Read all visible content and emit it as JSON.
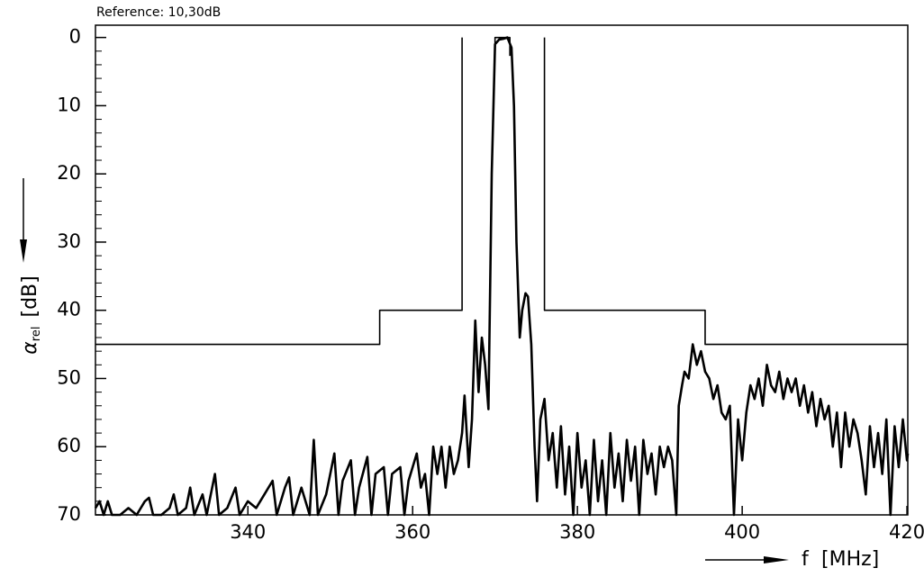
{
  "chart_data": {
    "type": "line",
    "reference": "Reference:   10,30dB",
    "y_label_symbol": "α",
    "y_label_sub": "rel",
    "y_label_unit": "[dB]",
    "x_label_symbol": "f",
    "x_label_unit": "[MHz]",
    "xlim": [
      321.5,
      420.1
    ],
    "ylim": [
      70,
      -1.8
    ],
    "xticks": [
      340,
      360,
      380,
      400,
      420
    ],
    "yticks": [
      0,
      10,
      20,
      30,
      40,
      50,
      60,
      70
    ],
    "yminorticks": [
      2,
      4,
      6,
      8,
      12,
      14,
      16,
      18,
      22,
      24,
      26,
      28,
      32,
      34,
      36,
      38,
      42,
      44,
      46,
      48,
      52,
      54,
      56,
      58,
      62,
      64,
      66,
      68
    ],
    "series": [
      {
        "color": "#000000",
        "x": [
          321.5,
          356,
          356,
          366,
          366
        ],
        "values": [
          45,
          45,
          40,
          40,
          0
        ]
      },
      {
        "color": "#000000",
        "x": [
          376,
          376,
          395.5,
          395.5,
          420.1
        ],
        "values": [
          0,
          40,
          40,
          45,
          45
        ]
      },
      {
        "color": "#000000",
        "x": [
          370,
          370,
          371.8,
          371.8
        ],
        "values": [
          2.7,
          0,
          0,
          2.7
        ]
      },
      {
        "color": "#000000",
        "x": [
          321.5,
          322,
          322.5,
          323,
          323.5,
          324.5,
          325.5,
          326.5,
          327.5,
          328,
          328.5,
          329.5,
          330.5,
          331,
          331.5,
          332.5,
          333,
          333.5,
          334.5,
          335,
          336,
          336.5,
          337.5,
          338.5,
          339,
          340,
          341,
          342,
          343,
          343.5,
          344.5,
          345,
          345.5,
          346.5,
          347.5,
          348,
          348.5,
          349.5,
          350.5,
          351,
          351.5,
          352.5,
          353,
          353.5,
          354.5,
          355,
          355.5,
          356.5,
          357,
          357.5,
          358.5,
          359,
          359.5,
          360.5,
          361,
          361.5,
          362,
          362.5,
          363,
          363.5,
          364,
          364.5,
          365,
          365.5,
          366,
          366.3,
          366.8,
          367.2,
          367.6,
          368,
          368.4,
          368.8,
          369.2,
          369.6,
          370,
          370.5,
          371,
          371.5,
          372,
          372.3,
          372.6,
          373,
          373.3,
          373.7,
          374,
          374.4,
          374.8,
          375.1,
          375.5,
          376,
          376.5,
          377,
          377.5,
          378,
          378.5,
          379,
          379.5,
          380,
          380.5,
          381,
          381.5,
          382,
          382.5,
          383,
          383.5,
          384,
          384.5,
          385,
          385.5,
          386,
          386.5,
          387,
          387.5,
          388,
          388.5,
          389,
          389.5,
          390,
          390.5,
          391,
          391.5,
          392,
          392.3,
          392.7,
          393,
          393.5,
          394,
          394.5,
          395,
          395.5,
          396,
          396.5,
          397,
          397.5,
          398,
          398.5,
          399,
          399.5,
          400,
          400.5,
          401,
          401.5,
          402,
          402.5,
          403,
          403.5,
          404,
          404.5,
          405,
          405.5,
          406,
          406.5,
          407,
          407.5,
          408,
          408.5,
          409,
          409.5,
          410,
          410.5,
          411,
          411.5,
          412,
          412.5,
          413,
          413.5,
          414,
          414.5,
          415,
          415.5,
          416,
          416.5,
          417,
          417.5,
          418,
          418.5,
          419,
          419.5,
          420,
          420.1
        ],
        "values": [
          69,
          68,
          70,
          68,
          70,
          70,
          69,
          70,
          68,
          67.5,
          70,
          70,
          69,
          67,
          70,
          69,
          66,
          70,
          67,
          70,
          64,
          70,
          69,
          66,
          70,
          68,
          69,
          67,
          65,
          70,
          66,
          64.5,
          70,
          66,
          70,
          59,
          70,
          67,
          61,
          70,
          65,
          62,
          70,
          66,
          61.5,
          70,
          64,
          63,
          70,
          64,
          63,
          70,
          65,
          61,
          66,
          64,
          70,
          60,
          64,
          60,
          66,
          60,
          64,
          62,
          58,
          52.5,
          63,
          56,
          41.5,
          52,
          44,
          48,
          54.5,
          20,
          1,
          0.3,
          0.2,
          0,
          1.5,
          10,
          30,
          44,
          40,
          37.5,
          38,
          45,
          60,
          68,
          56,
          53,
          62,
          58,
          66,
          57,
          67,
          60,
          70,
          58,
          66,
          62,
          70,
          59,
          68,
          62,
          70,
          58,
          66,
          61,
          68,
          59,
          65,
          60,
          70,
          59,
          64,
          61,
          67,
          60,
          63,
          60,
          62,
          70,
          54,
          51,
          49,
          50,
          45,
          48,
          46,
          49,
          50,
          53,
          51,
          55,
          56,
          54,
          70,
          56,
          62,
          55,
          51,
          53,
          50,
          54,
          48,
          51,
          52,
          49,
          53,
          50,
          52,
          50,
          54,
          51,
          55,
          52,
          57,
          53,
          56,
          54,
          60,
          55,
          63,
          55,
          60,
          56,
          58,
          62,
          67,
          57,
          63,
          58,
          64,
          56,
          70,
          57,
          63,
          56,
          62,
          61
        ]
      }
    ]
  }
}
